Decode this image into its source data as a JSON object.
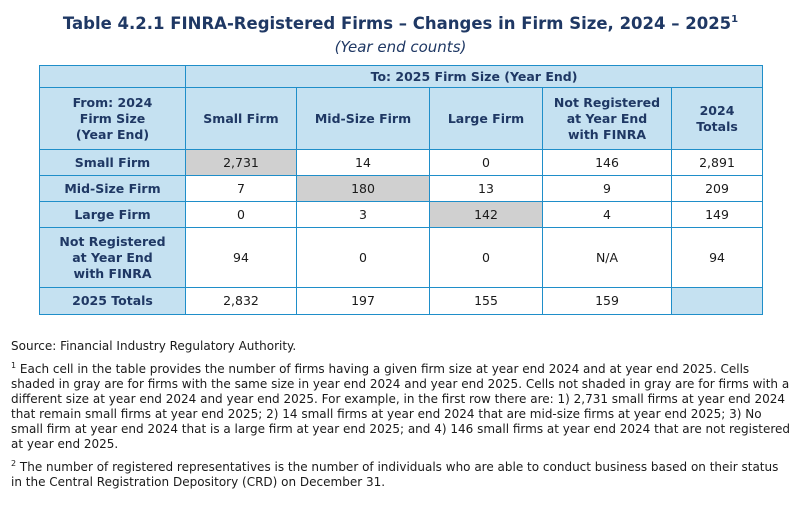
{
  "title": "Table 4.2.1 FINRA-Registered Firms – Changes in Firm Size, 2024 – 2025",
  "title_sup": "1",
  "subtitle": "(Year end counts)",
  "table": {
    "group_header": "To: 2025 Firm Size (Year End)",
    "from_header": [
      "From: 2024",
      "Firm Size",
      "(Year End)"
    ],
    "columns": [
      [
        "Small Firm"
      ],
      [
        "Mid-Size Firm"
      ],
      [
        "Large Firm"
      ],
      [
        "Not Registered",
        "at Year End",
        "with FINRA"
      ],
      [
        "2024",
        "Totals"
      ]
    ],
    "rows": [
      {
        "label": [
          "Small Firm"
        ],
        "cells": [
          "2,731",
          "14",
          "0",
          "146",
          "2,891"
        ]
      },
      {
        "label": [
          "Mid-Size Firm"
        ],
        "cells": [
          "7",
          "180",
          "13",
          "9",
          "209"
        ]
      },
      {
        "label": [
          "Large Firm"
        ],
        "cells": [
          "0",
          "3",
          "142",
          "4",
          "149"
        ]
      },
      {
        "label": [
          "Not Registered",
          "at Year End",
          "with FINRA"
        ],
        "cells": [
          "94",
          "0",
          "0",
          "N/A",
          "94"
        ]
      },
      {
        "label": [
          "2025 Totals"
        ],
        "cells": [
          "2,832",
          "197",
          "155",
          "159",
          ""
        ]
      }
    ],
    "shade_color": "#d0d0d0",
    "header_color": "#c5e1f1",
    "border_color": "#1f8ec9"
  },
  "notes": {
    "source": "Source: Financial Industry Regulatory Authority.",
    "fn1_mark": "1",
    "fn1": " Each cell in the table provides the number of firms having a given firm size at year end 2024 and at year end 2025. Cells shaded in gray are for firms with the same size in year end 2024 and year end 2025. Cells not shaded in gray are for firms with a different size at year end 2024 and year end 2025. For example, in the first row there are: 1) 2,731 small firms at year end 2024 that remain small firms at year end 2025; 2) 14 small firms at year end 2024 that are mid-size firms at year end 2025; 3) No small firm at year end 2024 that is a large firm at year end 2025; and 4) 146 small firms at year end 2024 that are not registered at year end 2025.",
    "fn2_mark": "2",
    "fn2": " The number of registered representatives is the number of individuals who are able to conduct business based on their status in the Central Registration Depository (CRD) on December 31."
  }
}
